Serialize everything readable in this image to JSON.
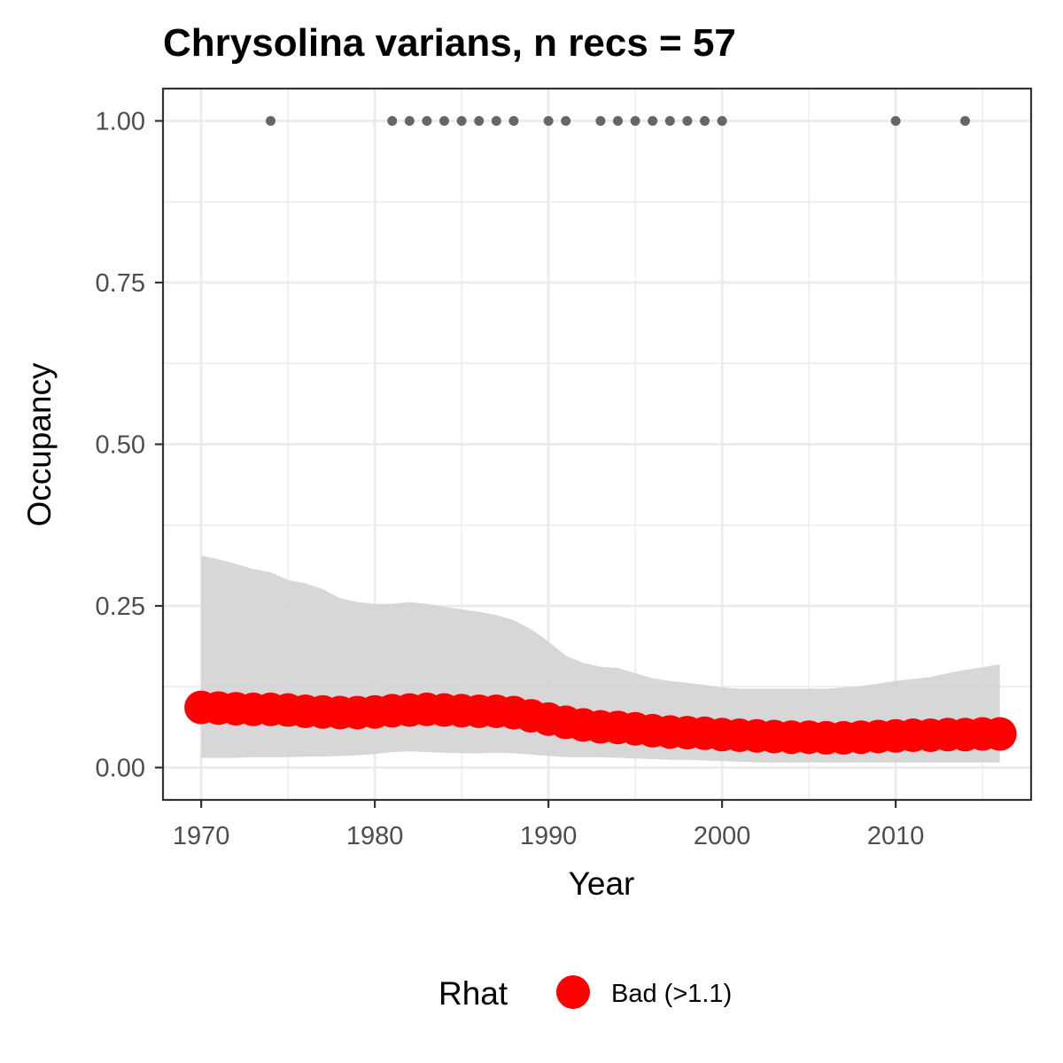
{
  "chart_data": {
    "type": "line",
    "title": "Chrysolina varians, n recs = 57",
    "xlabel": "Year",
    "ylabel": "Occupancy",
    "xlim": [
      1967.8,
      2017.8
    ],
    "ylim": [
      -0.05,
      1.05
    ],
    "x_ticks": [
      1970,
      1980,
      1990,
      2000,
      2010
    ],
    "x_tick_labels": [
      "1970",
      "1980",
      "1990",
      "2000",
      "2010"
    ],
    "y_ticks": [
      0,
      0.25,
      0.5,
      0.75,
      1
    ],
    "y_tick_labels": [
      "0.00",
      "0.25",
      "0.50",
      "0.75",
      "1.00"
    ],
    "grid": true,
    "colors": {
      "series": "#ff0000",
      "ribbon": "#d3d3d3",
      "records": "#666666",
      "grid": "#ebebeb",
      "panel_border": "#333333"
    },
    "series": [
      {
        "x": [
          1970,
          1971,
          1972,
          1973,
          1974,
          1975,
          1976,
          1977,
          1978,
          1979,
          1980,
          1981,
          1982,
          1983,
          1984,
          1985,
          1986,
          1987,
          1988,
          1989,
          1990,
          1991,
          1992,
          1993,
          1994,
          1995,
          1996,
          1997,
          1998,
          1999,
          2000,
          2001,
          2002,
          2003,
          2004,
          2005,
          2006,
          2007,
          2008,
          2009,
          2010,
          2011,
          2012,
          2013,
          2014,
          2015,
          2016
        ],
        "y": [
          0.093,
          0.092,
          0.091,
          0.09,
          0.09,
          0.089,
          0.087,
          0.086,
          0.085,
          0.085,
          0.086,
          0.088,
          0.089,
          0.09,
          0.089,
          0.088,
          0.087,
          0.087,
          0.085,
          0.08,
          0.075,
          0.07,
          0.066,
          0.063,
          0.062,
          0.06,
          0.057,
          0.055,
          0.054,
          0.053,
          0.051,
          0.05,
          0.049,
          0.048,
          0.047,
          0.047,
          0.046,
          0.046,
          0.047,
          0.048,
          0.049,
          0.05,
          0.05,
          0.051,
          0.051,
          0.052,
          0.052
        ],
        "lower": [
          0.015,
          0.015,
          0.015,
          0.016,
          0.016,
          0.016,
          0.017,
          0.017,
          0.018,
          0.019,
          0.021,
          0.024,
          0.025,
          0.024,
          0.023,
          0.022,
          0.022,
          0.023,
          0.022,
          0.02,
          0.018,
          0.016,
          0.016,
          0.016,
          0.015,
          0.014,
          0.013,
          0.012,
          0.012,
          0.011,
          0.01,
          0.009,
          0.008,
          0.008,
          0.008,
          0.008,
          0.008,
          0.008,
          0.008,
          0.008,
          0.008,
          0.008,
          0.008,
          0.008,
          0.008,
          0.008,
          0.008
        ],
        "upper": [
          0.328,
          0.322,
          0.315,
          0.307,
          0.302,
          0.29,
          0.285,
          0.276,
          0.262,
          0.256,
          0.253,
          0.253,
          0.256,
          0.253,
          0.249,
          0.245,
          0.241,
          0.236,
          0.228,
          0.214,
          0.195,
          0.173,
          0.162,
          0.156,
          0.154,
          0.146,
          0.138,
          0.134,
          0.131,
          0.128,
          0.124,
          0.122,
          0.122,
          0.122,
          0.122,
          0.122,
          0.122,
          0.124,
          0.126,
          0.13,
          0.134,
          0.137,
          0.14,
          0.146,
          0.151,
          0.155,
          0.16
        ]
      }
    ],
    "records": {
      "x": [
        1974,
        1981,
        1982,
        1983,
        1984,
        1985,
        1986,
        1987,
        1988,
        1990,
        1991,
        1993,
        1994,
        1995,
        1996,
        1997,
        1998,
        1999,
        2000,
        2010,
        2014
      ],
      "y": [
        1,
        1,
        1,
        1,
        1,
        1,
        1,
        1,
        1,
        1,
        1,
        1,
        1,
        1,
        1,
        1,
        1,
        1,
        1,
        1,
        1
      ]
    },
    "legend": {
      "position": "bottom",
      "title": "Rhat",
      "items": [
        {
          "label": "Bad (>1.1)",
          "color": "#ff0000"
        }
      ]
    }
  }
}
